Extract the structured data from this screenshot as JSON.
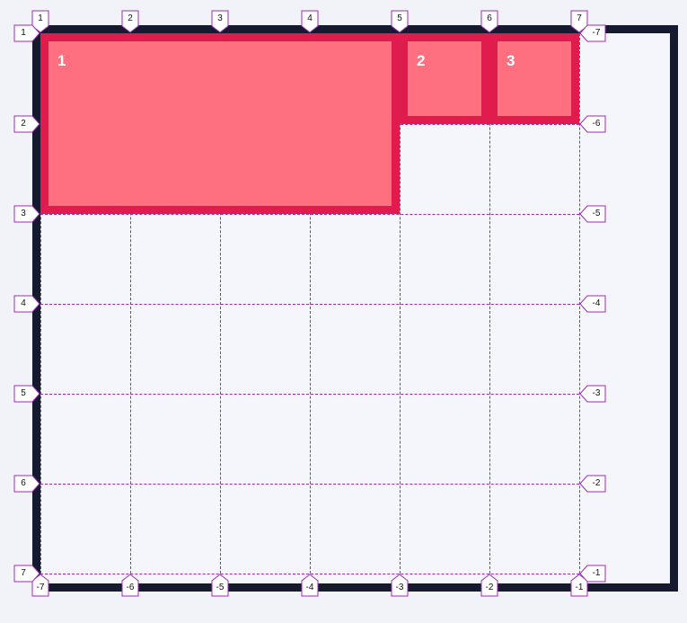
{
  "grid": {
    "border_color": "#161a2e",
    "line_color": "#9c2bb8",
    "item_fill": "#fe7080",
    "item_border": "#e01b4d"
  },
  "items": [
    {
      "label": "1"
    },
    {
      "label": "2"
    },
    {
      "label": "3"
    }
  ],
  "line_numbers": {
    "top": [
      "1",
      "2",
      "3",
      "4",
      "5",
      "6",
      "7"
    ],
    "bottom": [
      "-7",
      "-6",
      "-5",
      "-4",
      "-3",
      "-2",
      "-1"
    ],
    "left": [
      "1",
      "2",
      "3",
      "4",
      "5",
      "6",
      "7"
    ],
    "right": [
      "-7",
      "-6",
      "-5",
      "-4",
      "-3",
      "-2",
      "-1"
    ]
  }
}
